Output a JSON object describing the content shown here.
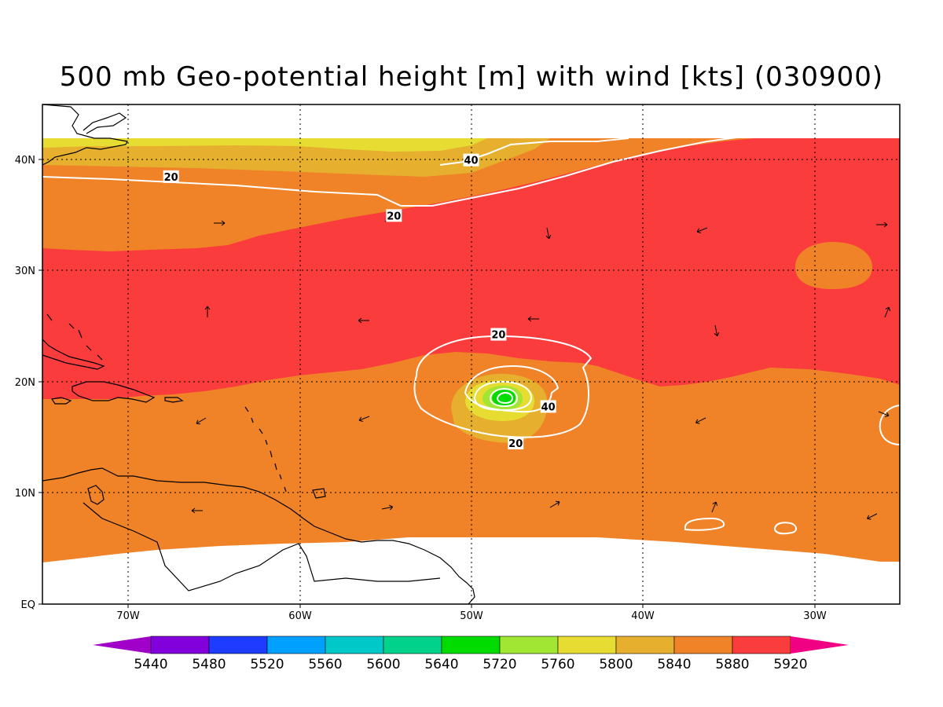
{
  "title": "500 mb Geo-potential height [m] with wind [kts] (030900)",
  "axes": {
    "x_ticks": [
      "70W",
      "60W",
      "50W",
      "40W",
      "30W"
    ],
    "y_ticks": [
      "EQ",
      "10N",
      "20N",
      "30N",
      "40N"
    ]
  },
  "colorbar": {
    "levels": [
      "5440",
      "5480",
      "5520",
      "5560",
      "5600",
      "5640",
      "5720",
      "5760",
      "5800",
      "5840",
      "5880",
      "5920"
    ],
    "colors": [
      "#a000c8",
      "#8200dc",
      "#1e3cff",
      "#00a0ff",
      "#00c8c8",
      "#00d28c",
      "#00dc00",
      "#a0e632",
      "#e6dc32",
      "#e6af2d",
      "#f08228",
      "#fa3c3c",
      "#f00082"
    ]
  },
  "field_colors": {
    "height_5760": "#e6dc32",
    "height_5800": "#e6af2d",
    "height_5840": "#f08228",
    "height_5880": "#fa3c3c",
    "height_5720": "#a0e632",
    "height_5640": "#00dc00",
    "contour": "#ffffff",
    "coast": "#000000"
  },
  "wind_contour_labels": [
    {
      "text": "40",
      "lon": -50.0,
      "lat": 40.0
    },
    {
      "text": "20",
      "lon": -67.5,
      "lat": 38.5
    },
    {
      "text": "20",
      "lon": -54.5,
      "lat": 35.0
    },
    {
      "text": "20",
      "lon": -48.4,
      "lat": 24.3
    },
    {
      "text": "40",
      "lon": -45.5,
      "lat": 17.8
    },
    {
      "text": "20",
      "lon": -47.4,
      "lat": 14.5
    }
  ]
}
